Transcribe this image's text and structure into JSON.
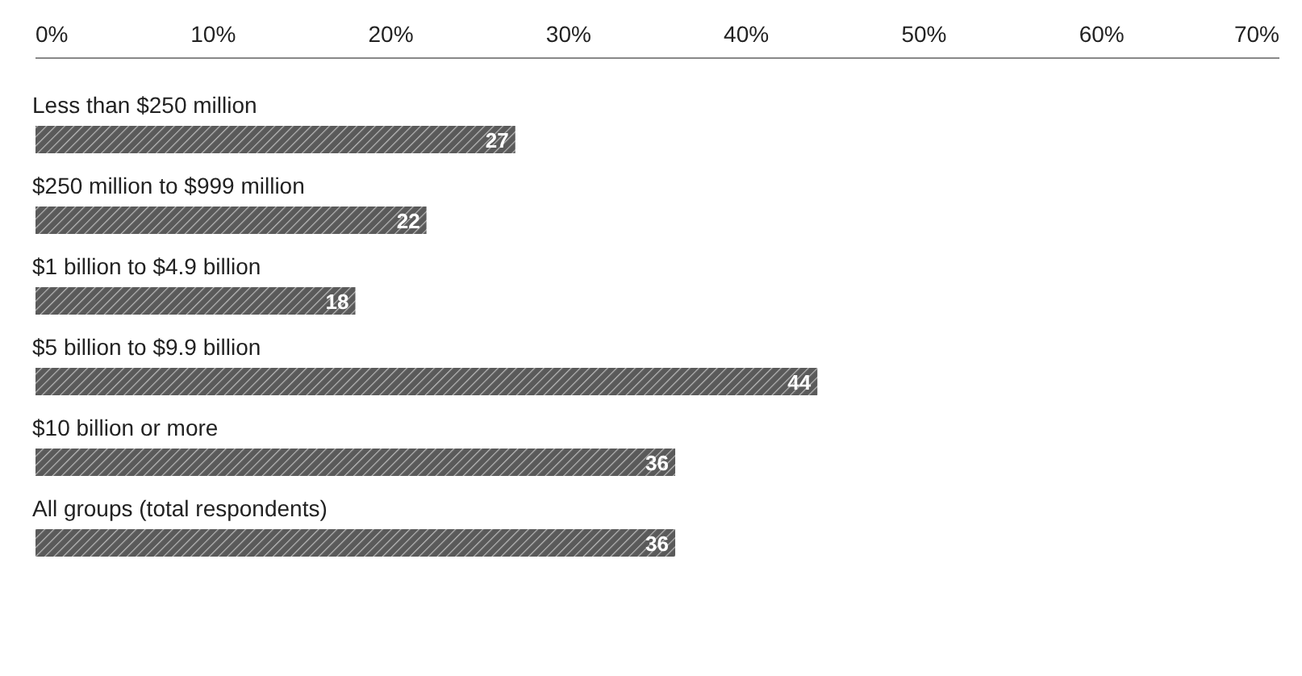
{
  "chart_data": {
    "type": "bar",
    "orientation": "horizontal",
    "categories": [
      "Less than $250 million",
      "$250 million to $999 million",
      "$1 billion to $4.9 billion",
      "$5 billion to $9.9 billion",
      "$10 billion or more",
      "All groups (total respondents)"
    ],
    "values": [
      27,
      22,
      18,
      44,
      36,
      36
    ],
    "color": "#5a5a5a",
    "data_labels": true,
    "xlim": [
      0,
      70
    ],
    "xticks": [
      {
        "value": 0,
        "label": "0%"
      },
      {
        "value": 10,
        "label": "10%"
      },
      {
        "value": 20,
        "label": "20%"
      },
      {
        "value": 30,
        "label": "30%"
      },
      {
        "value": 40,
        "label": "40%"
      },
      {
        "value": 50,
        "label": "50%"
      },
      {
        "value": 60,
        "label": "60%"
      },
      {
        "value": 70,
        "label": "70%"
      }
    ]
  }
}
